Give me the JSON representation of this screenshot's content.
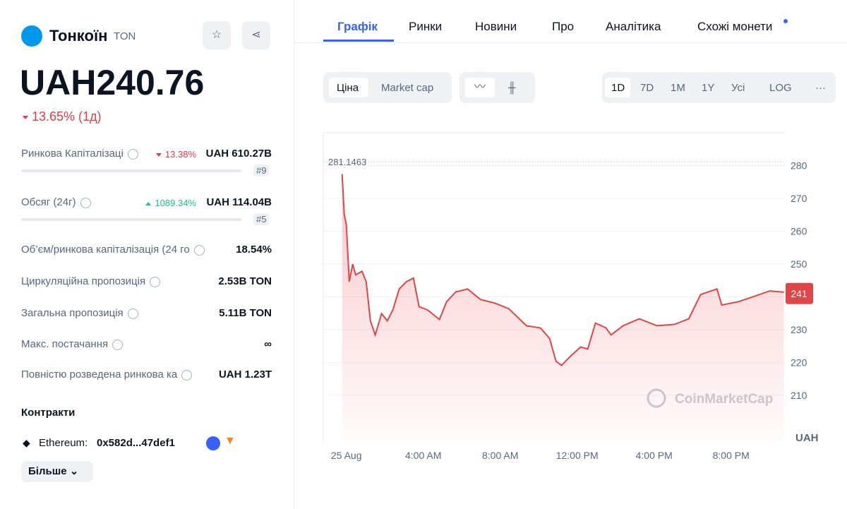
{
  "coin": {
    "name": "Тонкоїн",
    "symbol": "TON",
    "price": "UAH240.76",
    "change": "13.65% (1д)"
  },
  "stats": [
    {
      "label": "Ринкова Капіталізаці",
      "change": "13.38%",
      "direction": "down",
      "value": "UAH 610.27B",
      "rank": "#9"
    },
    {
      "label": "Обсяг (24г)",
      "change": "1089.34%",
      "direction": "up",
      "value": "UAH 114.04B",
      "rank": "#5"
    },
    {
      "label": "Об’єм/ринкова капіталізація (24 го",
      "value": "18.54%"
    },
    {
      "label": "Циркуляційна пропозиція",
      "value": "2.53B TON"
    },
    {
      "label": "Загальна пропозиція",
      "value": "5.11B TON"
    },
    {
      "label": "Макс. постачання",
      "value": "∞"
    },
    {
      "label": "Повністю розведена ринкова ка",
      "value": "UAH 1.23T"
    }
  ],
  "contracts": {
    "title": "Контракти",
    "network": "Ethereum:",
    "address": "0x582d...47def1",
    "more": "Більше"
  },
  "tabs": [
    "Графік",
    "Ринки",
    "Новини",
    "Про",
    "Аналітика",
    "Схожі монети"
  ],
  "chart_toggles": [
    "Ціна",
    "Market cap"
  ],
  "timeframes": [
    "1D",
    "7D",
    "1M",
    "1Y",
    "Усі",
    "LOG",
    "···"
  ],
  "chart_data": {
    "type": "line",
    "unit": "UAH",
    "watermark": "CoinMarketCap",
    "color": "#e04646",
    "x": [
      -0.22,
      -0.11,
      0,
      0.15,
      0.33,
      0.48,
      0.81,
      1.03,
      1.25,
      1.5,
      1.83,
      2.13,
      2.42,
      2.75,
      3.12,
      3.49,
      3.78,
      4.22,
      4.84,
      5.21,
      5.69,
      6.31,
      6.97,
      7.71,
      8.44,
      9.36,
      10.09,
      10.57,
      10.9,
      11.19,
      11.67,
      12.18,
      12.55,
      12.95,
      13.5,
      13.76,
      14.39,
      15.23,
      16.15,
      17.06,
      17.8,
      18.42,
      19.27,
      19.52,
      20.37,
      21.28,
      22.02,
      22.75
    ],
    "values": [
      277.4,
      265.1,
      261.9,
      244.6,
      250,
      246.7,
      247.8,
      244.6,
      232.7,
      228.4,
      234.9,
      232.7,
      236,
      242.4,
      244.6,
      245.7,
      237,
      236,
      233.1,
      238.5,
      241.5,
      242.4,
      239.2,
      238.1,
      236.4,
      231.2,
      230.5,
      227.3,
      220.4,
      219.1,
      222,
      224.7,
      224.1,
      232,
      230.5,
      228.4,
      231.2,
      233.3,
      231.2,
      231.6,
      233.3,
      240.7,
      242.4,
      237.5,
      238.5,
      240.3,
      241.8,
      241.4
    ],
    "xlim": [
      -1.2,
      22.8
    ],
    "xticks": [
      {
        "value": 0,
        "label": "25 Aug"
      },
      {
        "value": 4,
        "label": "4:00 AM"
      },
      {
        "value": 8,
        "label": "8:00 AM"
      },
      {
        "value": 12,
        "label": "12:00 PM"
      },
      {
        "value": 16,
        "label": "4:00 PM"
      },
      {
        "value": 20,
        "label": "8:00 PM"
      }
    ],
    "ylim": [
      196,
      290
    ],
    "yticks": [
      210,
      220,
      230,
      240,
      250,
      260,
      270,
      280
    ],
    "grid": true,
    "annotations": [
      {
        "label": "281.1463",
        "value": 281.1463
      },
      {
        "label": "241",
        "value": 241
      }
    ]
  }
}
